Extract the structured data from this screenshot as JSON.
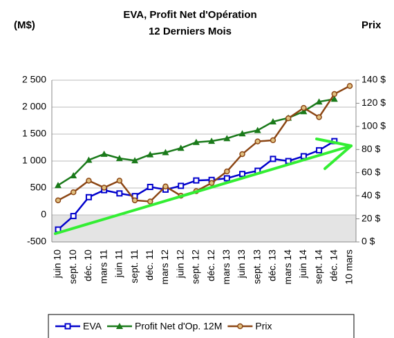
{
  "chart_data": {
    "type": "line",
    "title": "EVA, Profit Net d'Opération",
    "subtitle": "12 Derniers Mois",
    "y_label": "(M$)",
    "y2_label": "Prix",
    "categories": [
      "juin 10",
      "sept. 10",
      "déc. 10",
      "mars 11",
      "juin 11",
      "sept. 11",
      "déc. 11",
      "mars 12",
      "juin 12",
      "sept. 12",
      "déc. 12",
      "mars 13",
      "juin 13",
      "sept. 13",
      "déc. 13",
      "mars 14",
      "juin 14",
      "sept. 14",
      "déc. 14",
      "10 mars"
    ],
    "series": [
      {
        "name": "EVA",
        "color": "#0000cc",
        "marker": "square",
        "values": [
          -270,
          -20,
          330,
          460,
          400,
          350,
          520,
          470,
          540,
          640,
          650,
          680,
          760,
          820,
          1040,
          1000,
          1090,
          1200,
          1370,
          null
        ]
      },
      {
        "name": "Profit Net d'Op. 12M",
        "color": "#1a7a1a",
        "marker": "triangle",
        "values": [
          550,
          730,
          1020,
          1130,
          1050,
          1010,
          1120,
          1160,
          1240,
          1350,
          1370,
          1420,
          1510,
          1570,
          1730,
          1800,
          1920,
          2100,
          2150,
          null
        ]
      },
      {
        "name": "Prix",
        "color": "#8b4513",
        "marker": "circle",
        "axis": "y2",
        "values": [
          36,
          43,
          53,
          47,
          53,
          36,
          35,
          48,
          40,
          44,
          51,
          61,
          76,
          87,
          88,
          107,
          116,
          108,
          128,
          135
        ]
      }
    ],
    "ylim": [
      -500,
      2500
    ],
    "yticks": [
      {
        "value": -500,
        "label": "-500"
      },
      0,
      500,
      {
        "value": 1000,
        "label": "1 000"
      },
      {
        "value": 1500,
        "label": "1 500"
      },
      {
        "value": 2000,
        "label": "2 000"
      },
      {
        "value": 2500,
        "label": "2 500"
      }
    ],
    "y2lim": [
      0,
      140
    ],
    "y2ticks": [
      {
        "value": 0,
        "label": "0 $"
      },
      {
        "value": 20,
        "label": "20 $"
      },
      {
        "value": 40,
        "label": "40 $"
      },
      {
        "value": 60,
        "label": "60 $"
      },
      {
        "value": 80,
        "label": "80 $"
      },
      {
        "value": 100,
        "label": "100 $"
      },
      {
        "value": 120,
        "label": "120 $"
      },
      {
        "value": 140,
        "label": "140 $"
      }
    ],
    "grid": true,
    "legend": "bottom"
  }
}
